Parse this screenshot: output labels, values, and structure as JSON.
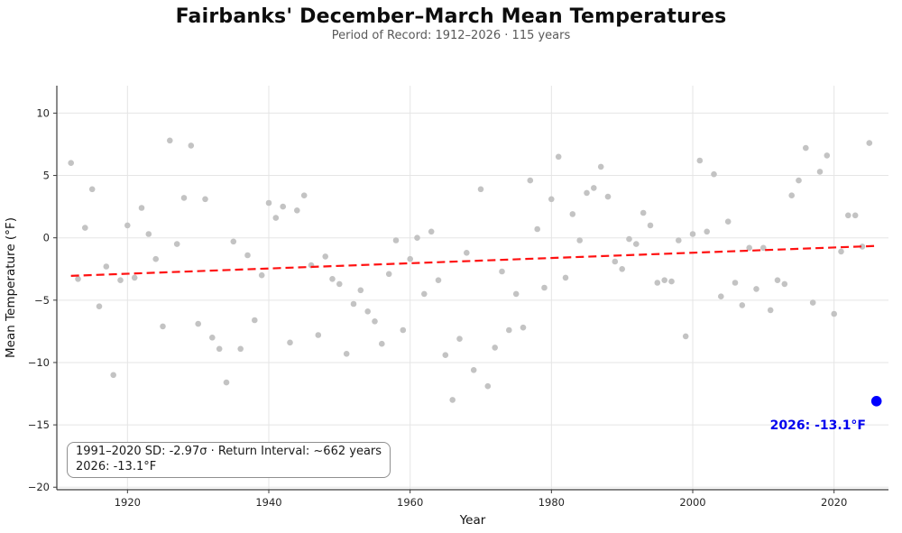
{
  "chart_data": {
    "type": "scatter",
    "title": "Fairbanks' December–March Mean Temperatures",
    "subtitle": "Period of Record: 1912–2026 · 115 years",
    "xlabel": "Year",
    "ylabel": "Mean Temperature (°F)",
    "xlim": [
      1910.0,
      2027.7
    ],
    "ylim": [
      -20.2,
      12.2
    ],
    "xticks": [
      1920,
      1940,
      1960,
      1980,
      2000,
      2020
    ],
    "yticks": [
      10,
      5,
      0,
      -5,
      -10,
      -15,
      -20
    ],
    "grid": true,
    "legend_position": "none",
    "point_color": "#c3c3c3",
    "grid_color": "#e5e5e5",
    "spine_color": "#3c3c3c",
    "points": [
      [
        1912,
        6.0
      ],
      [
        1913,
        -3.3
      ],
      [
        1914,
        0.8
      ],
      [
        1915,
        3.9
      ],
      [
        1916,
        -5.5
      ],
      [
        1917,
        -2.3
      ],
      [
        1918,
        -11.0
      ],
      [
        1919,
        -3.4
      ],
      [
        1920,
        1.0
      ],
      [
        1921,
        -3.2
      ],
      [
        1922,
        2.4
      ],
      [
        1923,
        0.3
      ],
      [
        1924,
        -1.7
      ],
      [
        1925,
        -7.1
      ],
      [
        1926,
        7.8
      ],
      [
        1927,
        -0.5
      ],
      [
        1928,
        3.2
      ],
      [
        1929,
        7.4
      ],
      [
        1930,
        -6.9
      ],
      [
        1931,
        3.1
      ],
      [
        1932,
        -8.0
      ],
      [
        1933,
        -8.9
      ],
      [
        1934,
        -11.6
      ],
      [
        1935,
        -0.3
      ],
      [
        1936,
        -8.9
      ],
      [
        1937,
        -1.4
      ],
      [
        1938,
        -6.6
      ],
      [
        1939,
        -3.0
      ],
      [
        1940,
        2.8
      ],
      [
        1941,
        1.6
      ],
      [
        1942,
        2.5
      ],
      [
        1943,
        -8.4
      ],
      [
        1944,
        2.2
      ],
      [
        1945,
        3.4
      ],
      [
        1946,
        -2.2
      ],
      [
        1947,
        -7.8
      ],
      [
        1948,
        -1.5
      ],
      [
        1949,
        -3.3
      ],
      [
        1950,
        -3.7
      ],
      [
        1951,
        -9.3
      ],
      [
        1952,
        -5.3
      ],
      [
        1953,
        -4.2
      ],
      [
        1954,
        -5.9
      ],
      [
        1955,
        -6.7
      ],
      [
        1956,
        -8.5
      ],
      [
        1957,
        -2.9
      ],
      [
        1958,
        -0.2
      ],
      [
        1959,
        -7.4
      ],
      [
        1960,
        -1.7
      ],
      [
        1961,
        0.0
      ],
      [
        1962,
        -4.5
      ],
      [
        1963,
        0.5
      ],
      [
        1964,
        -3.4
      ],
      [
        1965,
        -9.4
      ],
      [
        1966,
        -13.0
      ],
      [
        1967,
        -8.1
      ],
      [
        1968,
        -1.2
      ],
      [
        1969,
        -10.6
      ],
      [
        1970,
        3.9
      ],
      [
        1971,
        -11.9
      ],
      [
        1972,
        -8.8
      ],
      [
        1973,
        -2.7
      ],
      [
        1974,
        -7.4
      ],
      [
        1975,
        -4.5
      ],
      [
        1976,
        -7.2
      ],
      [
        1977,
        4.6
      ],
      [
        1978,
        0.7
      ],
      [
        1979,
        -4.0
      ],
      [
        1980,
        3.1
      ],
      [
        1981,
        6.5
      ],
      [
        1982,
        -3.2
      ],
      [
        1983,
        1.9
      ],
      [
        1984,
        -0.2
      ],
      [
        1985,
        3.6
      ],
      [
        1986,
        4.0
      ],
      [
        1987,
        5.7
      ],
      [
        1988,
        3.3
      ],
      [
        1989,
        -1.9
      ],
      [
        1990,
        -2.5
      ],
      [
        1991,
        -0.1
      ],
      [
        1992,
        -0.5
      ],
      [
        1993,
        2.0
      ],
      [
        1994,
        1.0
      ],
      [
        1995,
        -3.6
      ],
      [
        1996,
        -3.4
      ],
      [
        1997,
        -3.5
      ],
      [
        1998,
        -0.2
      ],
      [
        1999,
        -7.9
      ],
      [
        2000,
        0.3
      ],
      [
        2001,
        6.2
      ],
      [
        2002,
        0.5
      ],
      [
        2003,
        5.1
      ],
      [
        2004,
        -4.7
      ],
      [
        2005,
        1.3
      ],
      [
        2006,
        -3.6
      ],
      [
        2007,
        -5.4
      ],
      [
        2008,
        -0.8
      ],
      [
        2009,
        -4.1
      ],
      [
        2010,
        -0.8
      ],
      [
        2011,
        -5.8
      ],
      [
        2012,
        -3.4
      ],
      [
        2013,
        -3.7
      ],
      [
        2014,
        3.4
      ],
      [
        2015,
        4.6
      ],
      [
        2016,
        7.2
      ],
      [
        2017,
        -5.2
      ],
      [
        2018,
        5.3
      ],
      [
        2019,
        6.6
      ],
      [
        2020,
        -6.1
      ],
      [
        2021,
        -1.1
      ],
      [
        2022,
        1.8
      ],
      [
        2023,
        1.8
      ],
      [
        2024,
        -0.7
      ],
      [
        2025,
        7.6
      ]
    ],
    "highlight": {
      "year": 2026,
      "value": -13.1,
      "color": "#0000ff",
      "label": "2026: -13.1°F"
    },
    "trend": {
      "x1": 1912,
      "y1": -3.05,
      "x2": 2026,
      "y2": -0.65,
      "color": "#ff1111",
      "style": "dashed"
    },
    "annotation": {
      "line1": "1991–2020 SD: -2.97σ · Return Interval: ~662 years",
      "line2": "2026: -13.1°F"
    }
  }
}
